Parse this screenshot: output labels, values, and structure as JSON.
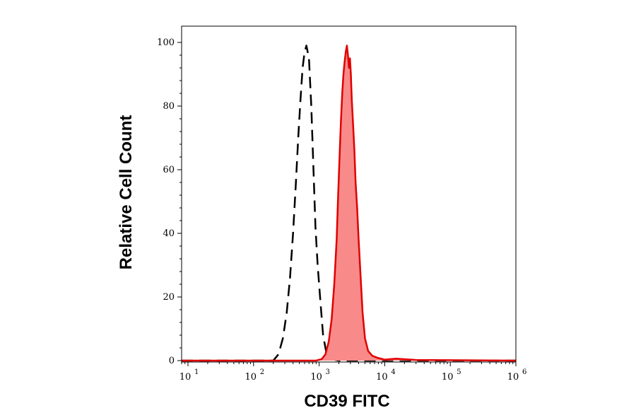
{
  "chart_data": {
    "type": "area",
    "xlabel": "CD39 FITC",
    "ylabel": "Relative Cell Count",
    "x_scale": "log",
    "xlim": [
      8,
      1000000
    ],
    "ylim": [
      0,
      100
    ],
    "x_ticks": [
      {
        "base": "10",
        "exp": "1",
        "value": 10
      },
      {
        "base": "10",
        "exp": "2",
        "value": 100
      },
      {
        "base": "10",
        "exp": "3",
        "value": 1000
      },
      {
        "base": "10",
        "exp": "4",
        "value": 10000
      },
      {
        "base": "10",
        "exp": "5",
        "value": 100000
      },
      {
        "base": "10",
        "exp": "6",
        "value": 1000000
      }
    ],
    "y_ticks": [
      "0",
      "20",
      "40",
      "60",
      "80",
      "100"
    ],
    "grid": false,
    "series": [
      {
        "style": "dashed-line",
        "color": "#000000",
        "x": [
          8,
          200,
          240,
          280,
          320,
          360,
          400,
          440,
          480,
          520,
          560,
          600,
          640,
          700,
          760,
          820,
          880,
          950,
          1050,
          1150,
          1300,
          1500,
          2000,
          1000000
        ],
        "y": [
          0,
          0,
          2,
          7,
          15,
          26,
          40,
          55,
          70,
          82,
          92,
          97,
          99,
          95,
          80,
          60,
          42,
          30,
          18,
          8,
          2,
          0.5,
          0,
          0
        ]
      },
      {
        "style": "filled",
        "color": "#e00000",
        "fill": "#f88a8a",
        "x": [
          8,
          900,
          1100,
          1250,
          1400,
          1550,
          1700,
          1850,
          1950,
          2050,
          2150,
          2250,
          2350,
          2450,
          2550,
          2650,
          2750,
          2850,
          2950,
          3050,
          3150,
          3300,
          3450,
          3600,
          3800,
          4000,
          4300,
          4600,
          5000,
          5600,
          6500,
          8000,
          10000,
          15000,
          30000,
          1000000
        ],
        "y": [
          0,
          0,
          0.5,
          2,
          6,
          13,
          24,
          38,
          52,
          64,
          75,
          84,
          90,
          94,
          97,
          99,
          96,
          92,
          95,
          90,
          82,
          74,
          66,
          56,
          48,
          38,
          26,
          15,
          7,
          3,
          1.5,
          0.8,
          0.3,
          0.6,
          0.2,
          0
        ]
      }
    ]
  }
}
